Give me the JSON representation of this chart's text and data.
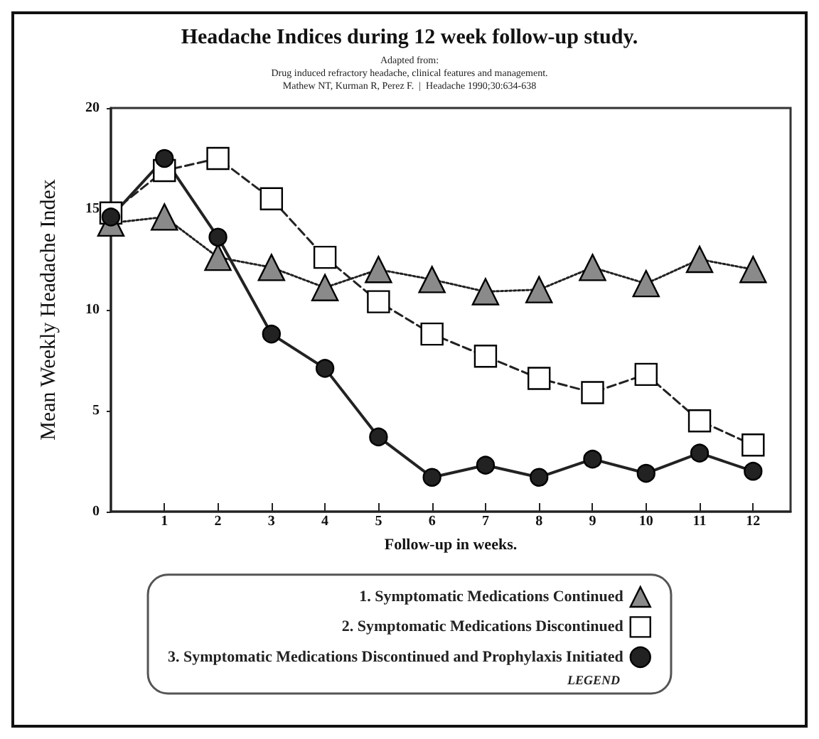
{
  "chart_data": {
    "type": "line",
    "title": "Headache Indices during 12 week follow-up study.",
    "subtitle": "Adapted from:\nDrug induced refractory headache, clinical features and management.\nMathew NT, Kurman R, Perez F.  |  Headache 1990;30:634-638",
    "xlabel": "Follow-up in weeks.",
    "ylabel": "Mean Weekly Headache Index",
    "legend_title": "LEGEND",
    "x": [
      0,
      1,
      2,
      3,
      4,
      5,
      6,
      7,
      8,
      9,
      10,
      11,
      12
    ],
    "xlim": [
      0,
      12.7
    ],
    "xticks": [
      1,
      2,
      3,
      4,
      5,
      6,
      7,
      8,
      9,
      10,
      11,
      12
    ],
    "ylim": [
      0,
      20
    ],
    "yticks": [
      0,
      5,
      10,
      15,
      20
    ],
    "grid": false,
    "legend": "bottom",
    "series": [
      {
        "name": "1. Symptomatic Medications Continued",
        "color": "#8a8a8a",
        "marker": "triangle",
        "line_style": "dotted",
        "values": [
          14.3,
          14.6,
          12.6,
          12.1,
          11.1,
          12.0,
          11.5,
          10.9,
          11.0,
          12.1,
          11.3,
          12.5,
          12.0
        ]
      },
      {
        "name": "2. Symptomatic Medications Discontinued",
        "color": "#ffffff",
        "marker": "square",
        "line_style": "dashed",
        "values": [
          14.8,
          16.9,
          17.5,
          15.5,
          12.6,
          10.4,
          8.8,
          7.7,
          6.6,
          5.9,
          6.8,
          4.5,
          3.3
        ]
      },
      {
        "name": "3. Symptomatic Medications Discontinued and Prophylaxis Initiated",
        "color": "#222222",
        "marker": "circle",
        "line_style": "solid",
        "values": [
          14.6,
          17.5,
          13.6,
          8.8,
          7.1,
          3.7,
          1.7,
          2.3,
          1.7,
          2.6,
          1.9,
          2.9,
          2.0
        ]
      }
    ]
  }
}
